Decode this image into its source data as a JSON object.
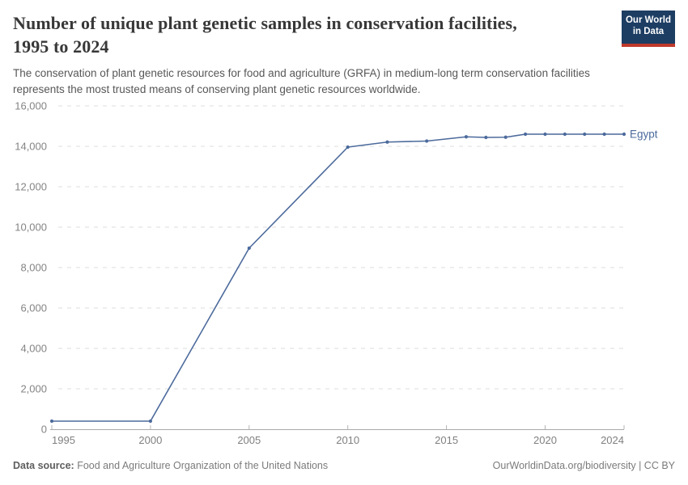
{
  "header": {
    "title": "Number of unique plant genetic samples in conservation facilities, 1995 to 2024",
    "title_lines": [
      "Number of unique plant genetic samples in conservation facilities,",
      "1995 to 2024"
    ],
    "subtitle": "The conservation of plant genetic resources for food and agriculture (GRFA) in medium-long term conservation facilities represents the most trusted means of conserving plant genetic resources worldwide.",
    "logo": {
      "line1": "Our World",
      "line2": "in Data",
      "bg_color": "#1d3d63",
      "stripe_color": "#c0392b",
      "text_color": "#ffffff"
    }
  },
  "chart_data": {
    "type": "line",
    "title": "Number of unique plant genetic samples in conservation facilities, 1995 to 2024",
    "xlabel": "",
    "ylabel": "",
    "x": {
      "min": 1995,
      "max": 2024,
      "ticks": [
        1995,
        2000,
        2005,
        2010,
        2015,
        2020,
        2024
      ]
    },
    "y": {
      "min": 0,
      "max": 16000,
      "ticks": [
        0,
        2000,
        4000,
        6000,
        8000,
        10000,
        12000,
        14000,
        16000
      ]
    },
    "grid": "horizontal-dashed",
    "legend": "line-end-label",
    "series": [
      {
        "name": "Egypt",
        "color": "#4c6a9c",
        "points": [
          [
            1995,
            400
          ],
          [
            2000,
            400
          ],
          [
            2005,
            8960
          ],
          [
            2010,
            13960
          ],
          [
            2012,
            14210
          ],
          [
            2014,
            14260
          ],
          [
            2016,
            14470
          ],
          [
            2017,
            14440
          ],
          [
            2018,
            14450
          ],
          [
            2019,
            14600
          ],
          [
            2020,
            14600
          ],
          [
            2021,
            14600
          ],
          [
            2022,
            14600
          ],
          [
            2023,
            14600
          ],
          [
            2024,
            14600
          ]
        ]
      }
    ]
  },
  "footer": {
    "source_label": "Data source:",
    "source_value": "Food and Agriculture Organization of the United Nations",
    "credit": "OurWorldinData.org/biodiversity | CC BY"
  }
}
